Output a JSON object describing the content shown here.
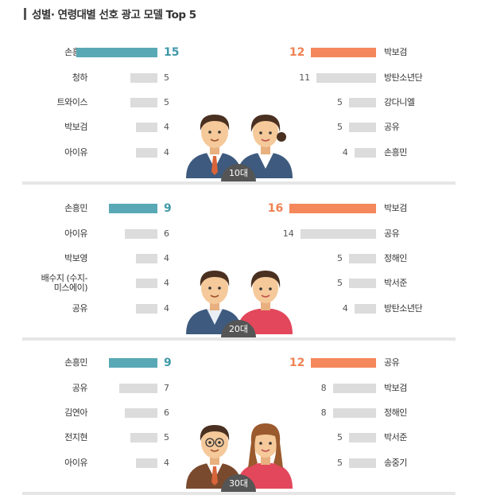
{
  "title": "성별· 연령대별 선호 광고 모델 Top 5",
  "chart_data": [
    {
      "type": "bar",
      "group": "10대",
      "male": {
        "categories": [
          "손흥민",
          "청하",
          "트와이스",
          "박보검",
          "아이유"
        ],
        "values": [
          15,
          5,
          5,
          4,
          4
        ]
      },
      "female": {
        "categories": [
          "박보검",
          "방탄소년단",
          "강다니엘",
          "공유",
          "손흥민"
        ],
        "values": [
          12,
          11,
          5,
          5,
          4
        ]
      }
    },
    {
      "type": "bar",
      "group": "20대",
      "male": {
        "categories": [
          "손흥민",
          "아이유",
          "박보영",
          "배수지 (수지-\n미스에이)",
          "공유"
        ],
        "values": [
          9,
          6,
          4,
          4,
          4
        ]
      },
      "female": {
        "categories": [
          "박보검",
          "공유",
          "정해인",
          "박서준",
          "방탄소년단"
        ],
        "values": [
          16,
          14,
          5,
          5,
          4
        ]
      }
    },
    {
      "type": "bar",
      "group": "30대",
      "male": {
        "categories": [
          "손흥민",
          "공유",
          "김연아",
          "전지현",
          "아이유"
        ],
        "values": [
          9,
          7,
          6,
          5,
          4
        ]
      },
      "female": {
        "categories": [
          "공유",
          "박보검",
          "정해인",
          "박서준",
          "송중기"
        ],
        "values": [
          12,
          8,
          8,
          5,
          5
        ]
      }
    }
  ],
  "colors": {
    "male_top": "#58a9b5",
    "female_top": "#f4875b",
    "other": "#dcdcdc"
  }
}
